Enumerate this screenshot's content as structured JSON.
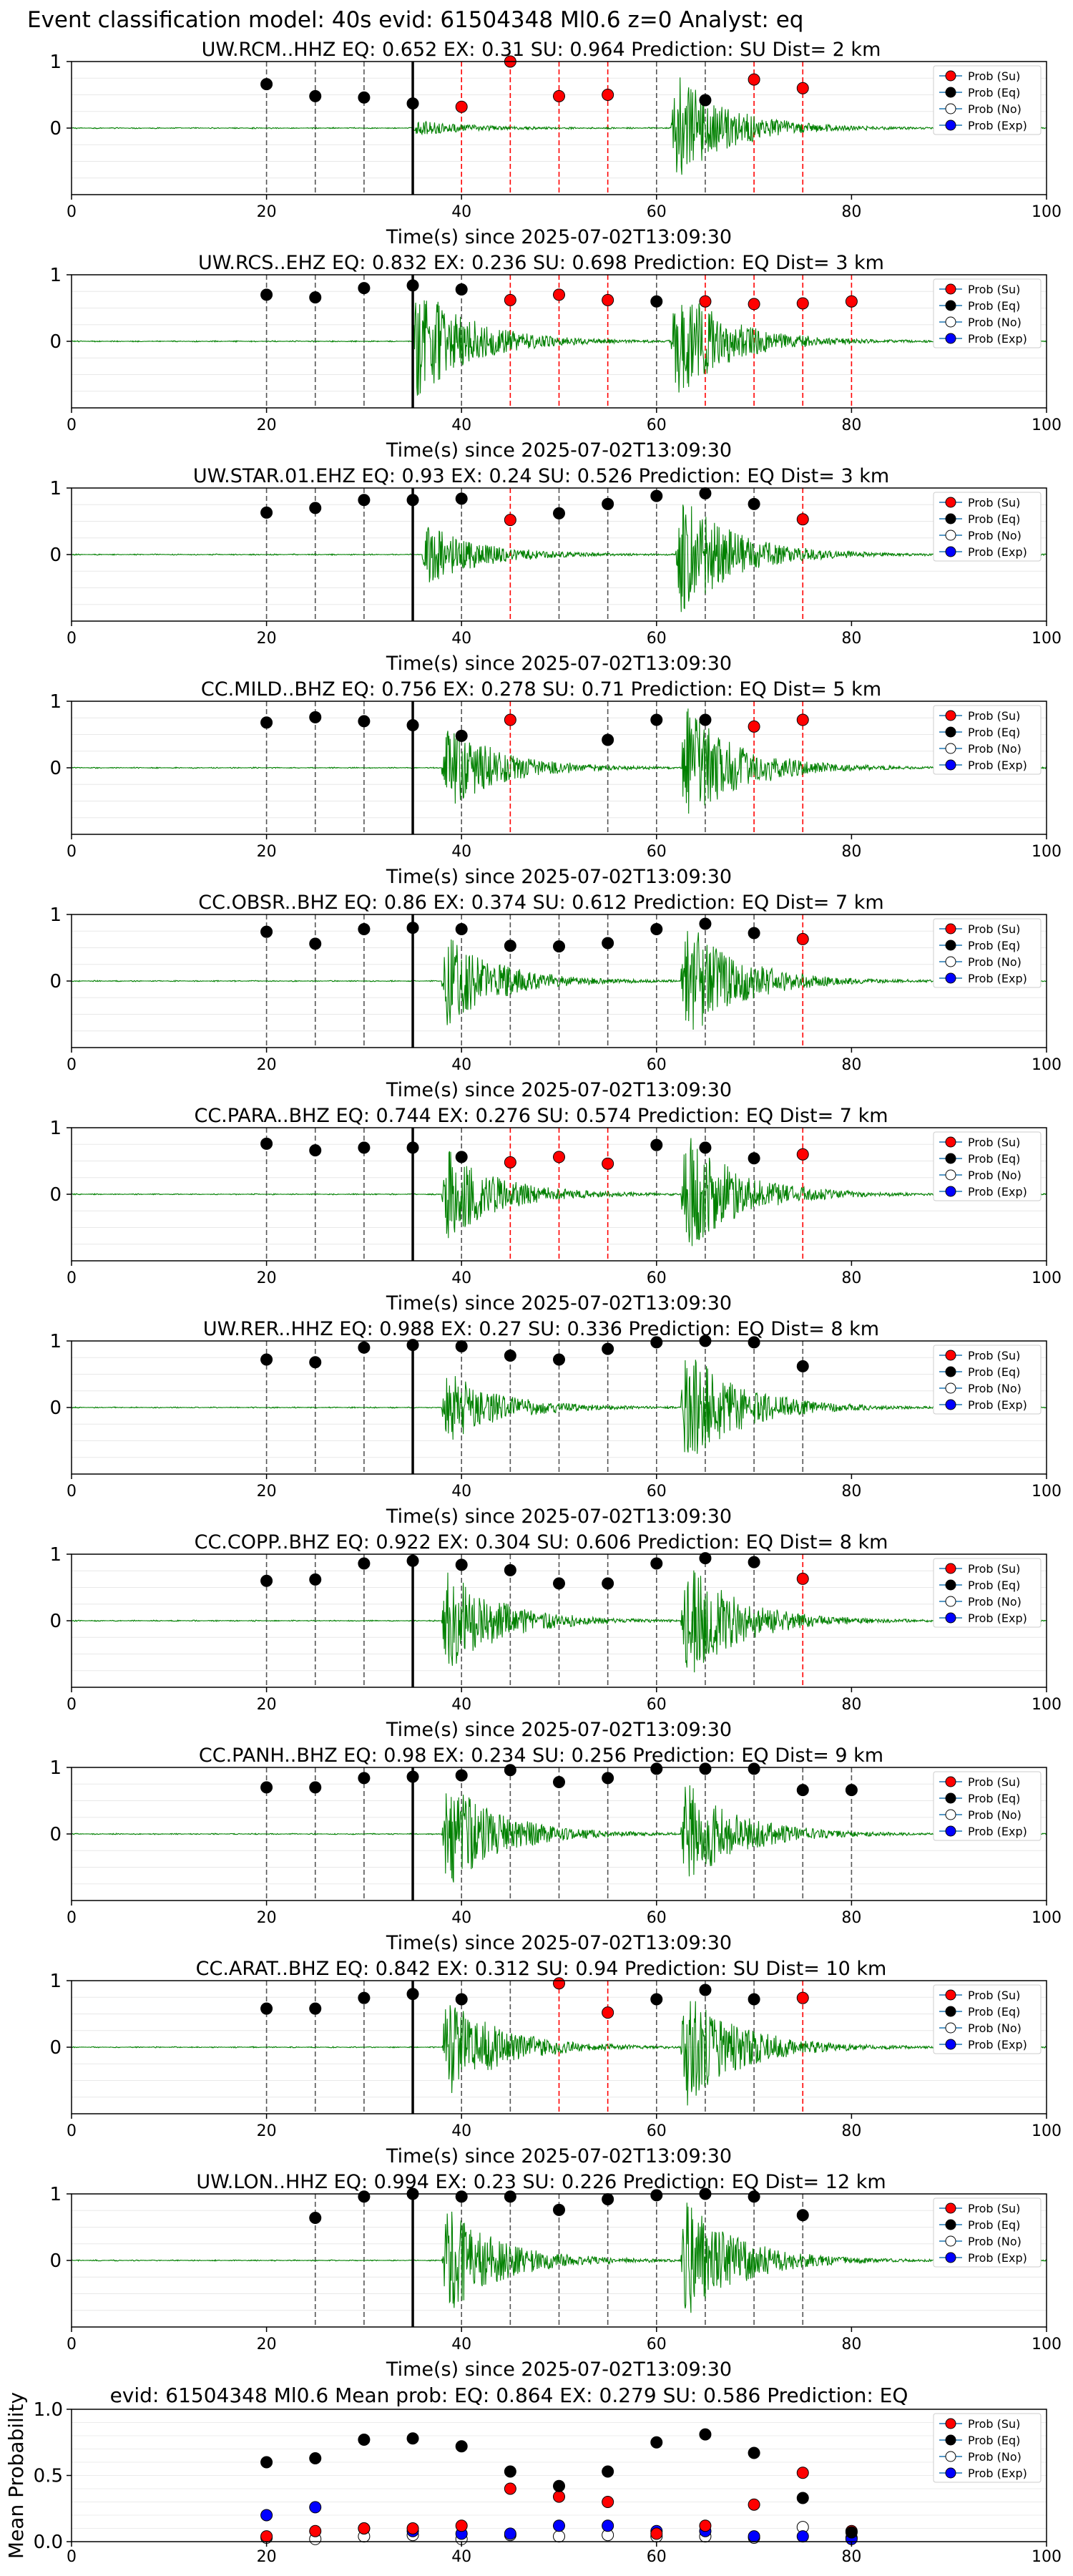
{
  "figure": {
    "title": "Event classification model: 40s evid: 61504348 Ml0.6 z=0 Analyst: eq",
    "xlabel": "Time(s) since 2025-07-02T13:09:30",
    "x_ticks": [
      "0",
      "20",
      "40",
      "60",
      "80",
      "100"
    ],
    "y_ticks": [
      "1",
      "0"
    ],
    "legend": [
      "Prob (Su)",
      "Prob (Eq)",
      "Prob (No)",
      "Prob (Exp)"
    ]
  },
  "colors": {
    "su": "#ff0000",
    "eq": "#000000",
    "no": "#ffffff",
    "exp": "#0000ff",
    "waveform": "#008000"
  },
  "chart_data": [
    {
      "type": "line",
      "station": "UW.RCM..HHZ",
      "title": "UW.RCM..HHZ   EQ: 0.652  EX: 0.31  SU: 0.964   Prediction: SU    Dist= 2 km",
      "xlim": [
        0,
        100
      ],
      "ylim": [
        -1,
        1
      ],
      "pick_time": 35,
      "bursts": [
        {
          "t": 35,
          "amp": 0.12
        },
        {
          "t": 61.5,
          "amp": 0.9
        }
      ],
      "windows": [
        20,
        25,
        30,
        35,
        40,
        45,
        50,
        55,
        60,
        65,
        70,
        75
      ],
      "eq_points": [
        [
          20,
          0.66
        ],
        [
          25,
          0.48
        ],
        [
          30,
          0.46
        ],
        [
          35,
          0.37
        ],
        [
          65,
          0.42
        ]
      ],
      "su_points": [
        [
          40,
          0.32
        ],
        [
          45,
          1.0
        ],
        [
          50,
          0.48
        ],
        [
          55,
          0.5
        ],
        [
          70,
          0.73
        ],
        [
          75,
          0.6
        ]
      ]
    },
    {
      "type": "line",
      "station": "UW.RCS..EHZ",
      "title": "UW.RCS..EHZ   EQ: 0.832  EX: 0.236  SU: 0.698   Prediction: EQ    Dist= 3 km",
      "xlim": [
        0,
        100
      ],
      "ylim": [
        -1,
        1
      ],
      "pick_time": 35,
      "bursts": [
        {
          "t": 35,
          "amp": 0.95
        },
        {
          "t": 61.5,
          "amp": 0.95
        }
      ],
      "windows": [
        20,
        25,
        30,
        35,
        40,
        45,
        50,
        55,
        60,
        65,
        70,
        75,
        80
      ],
      "eq_points": [
        [
          20,
          0.7
        ],
        [
          25,
          0.66
        ],
        [
          30,
          0.8
        ],
        [
          35,
          0.84
        ],
        [
          40,
          0.78
        ],
        [
          60,
          0.6
        ]
      ],
      "su_points": [
        [
          45,
          0.62
        ],
        [
          50,
          0.7
        ],
        [
          55,
          0.62
        ],
        [
          65,
          0.6
        ],
        [
          70,
          0.56
        ],
        [
          75,
          0.57
        ],
        [
          80,
          0.6
        ]
      ]
    },
    {
      "type": "line",
      "station": "UW.STAR.01.EHZ",
      "title": "UW.STAR.01.EHZ   EQ: 0.93  EX: 0.24  SU: 0.526   Prediction: EQ    Dist= 3 km",
      "xlim": [
        0,
        100
      ],
      "ylim": [
        -1,
        1
      ],
      "pick_time": 35,
      "bursts": [
        {
          "t": 36,
          "amp": 0.5
        },
        {
          "t": 62,
          "amp": 1.0
        }
      ],
      "windows": [
        20,
        25,
        30,
        35,
        40,
        45,
        50,
        55,
        60,
        65,
        70,
        75
      ],
      "eq_points": [
        [
          20,
          0.63
        ],
        [
          25,
          0.7
        ],
        [
          30,
          0.82
        ],
        [
          35,
          0.82
        ],
        [
          40,
          0.84
        ],
        [
          50,
          0.62
        ],
        [
          55,
          0.76
        ],
        [
          60,
          0.88
        ],
        [
          65,
          0.92
        ],
        [
          70,
          0.76
        ]
      ],
      "su_points": [
        [
          45,
          0.52
        ],
        [
          75,
          0.53
        ]
      ]
    },
    {
      "type": "line",
      "station": "CC.MILD..BHZ",
      "title": "CC.MILD..BHZ   EQ: 0.756  EX: 0.278  SU: 0.71   Prediction: EQ    Dist= 5 km",
      "xlim": [
        0,
        100
      ],
      "ylim": [
        -1,
        1
      ],
      "pick_time": 35,
      "bursts": [
        {
          "t": 38,
          "amp": 0.75
        },
        {
          "t": 62.5,
          "amp": 1.0
        }
      ],
      "windows": [
        20,
        25,
        30,
        35,
        40,
        45,
        55,
        60,
        65,
        70,
        75
      ],
      "eq_points": [
        [
          20,
          0.68
        ],
        [
          25,
          0.76
        ],
        [
          30,
          0.7
        ],
        [
          35,
          0.64
        ],
        [
          40,
          0.48
        ],
        [
          55,
          0.42
        ],
        [
          60,
          0.72
        ],
        [
          65,
          0.72
        ]
      ],
      "su_points": [
        [
          45,
          0.72
        ],
        [
          70,
          0.62
        ],
        [
          75,
          0.72
        ]
      ]
    },
    {
      "type": "line",
      "station": "CC.OBSR..BHZ",
      "title": "CC.OBSR..BHZ   EQ: 0.86  EX: 0.374  SU: 0.612   Prediction: EQ    Dist= 7 km",
      "xlim": [
        0,
        100
      ],
      "ylim": [
        -1,
        1
      ],
      "pick_time": 35,
      "bursts": [
        {
          "t": 38,
          "amp": 0.75
        },
        {
          "t": 62.5,
          "amp": 1.0
        }
      ],
      "windows": [
        20,
        25,
        30,
        35,
        40,
        45,
        50,
        55,
        60,
        65,
        70,
        75
      ],
      "eq_points": [
        [
          20,
          0.74
        ],
        [
          25,
          0.56
        ],
        [
          30,
          0.78
        ],
        [
          35,
          0.8
        ],
        [
          40,
          0.78
        ],
        [
          45,
          0.53
        ],
        [
          50,
          0.52
        ],
        [
          55,
          0.57
        ],
        [
          60,
          0.78
        ],
        [
          65,
          0.86
        ],
        [
          70,
          0.72
        ]
      ],
      "su_points": [
        [
          75,
          0.63
        ]
      ]
    },
    {
      "type": "line",
      "station": "CC.PARA..BHZ",
      "title": "CC.PARA..BHZ   EQ: 0.744  EX: 0.276  SU: 0.574   Prediction: EQ    Dist= 7 km",
      "xlim": [
        0,
        100
      ],
      "ylim": [
        -1,
        1
      ],
      "pick_time": 35,
      "bursts": [
        {
          "t": 38,
          "amp": 0.75
        },
        {
          "t": 62.5,
          "amp": 1.0
        }
      ],
      "windows": [
        20,
        25,
        30,
        35,
        40,
        45,
        50,
        55,
        60,
        65,
        70,
        75
      ],
      "eq_points": [
        [
          20,
          0.76
        ],
        [
          25,
          0.66
        ],
        [
          30,
          0.7
        ],
        [
          35,
          0.7
        ],
        [
          40,
          0.56
        ],
        [
          60,
          0.74
        ],
        [
          65,
          0.7
        ],
        [
          70,
          0.54
        ]
      ],
      "su_points": [
        [
          45,
          0.48
        ],
        [
          50,
          0.56
        ],
        [
          55,
          0.46
        ],
        [
          75,
          0.6
        ]
      ]
    },
    {
      "type": "line",
      "station": "UW.RER..HHZ",
      "title": "UW.RER..HHZ   EQ: 0.988  EX: 0.27  SU: 0.336   Prediction: EQ    Dist= 8 km",
      "xlim": [
        0,
        100
      ],
      "ylim": [
        -1,
        1
      ],
      "pick_time": 35,
      "bursts": [
        {
          "t": 38,
          "amp": 0.6
        },
        {
          "t": 62.5,
          "amp": 1.0
        }
      ],
      "windows": [
        20,
        25,
        30,
        35,
        40,
        45,
        50,
        55,
        60,
        65,
        70,
        75
      ],
      "eq_points": [
        [
          20,
          0.72
        ],
        [
          25,
          0.68
        ],
        [
          30,
          0.9
        ],
        [
          35,
          0.94
        ],
        [
          40,
          0.92
        ],
        [
          45,
          0.78
        ],
        [
          50,
          0.72
        ],
        [
          55,
          0.88
        ],
        [
          60,
          0.98
        ],
        [
          65,
          1.0
        ],
        [
          70,
          0.98
        ],
        [
          75,
          0.62
        ]
      ],
      "su_points": []
    },
    {
      "type": "line",
      "station": "CC.COPP..BHZ",
      "title": "CC.COPP..BHZ   EQ: 0.922  EX: 0.304  SU: 0.606   Prediction: EQ    Dist= 8 km",
      "xlim": [
        0,
        100
      ],
      "ylim": [
        -1,
        1
      ],
      "pick_time": 35,
      "bursts": [
        {
          "t": 38,
          "amp": 0.85
        },
        {
          "t": 62.5,
          "amp": 1.0
        }
      ],
      "windows": [
        20,
        25,
        30,
        35,
        40,
        45,
        50,
        55,
        60,
        65,
        70,
        75
      ],
      "eq_points": [
        [
          20,
          0.6
        ],
        [
          25,
          0.62
        ],
        [
          30,
          0.86
        ],
        [
          35,
          0.9
        ],
        [
          40,
          0.84
        ],
        [
          45,
          0.76
        ],
        [
          50,
          0.56
        ],
        [
          55,
          0.56
        ],
        [
          60,
          0.86
        ],
        [
          65,
          0.94
        ],
        [
          70,
          0.88
        ]
      ],
      "su_points": [
        [
          75,
          0.63
        ]
      ]
    },
    {
      "type": "line",
      "station": "CC.PANH..BHZ",
      "title": "CC.PANH..BHZ   EQ: 0.98  EX: 0.234  SU: 0.256   Prediction: EQ    Dist= 9 km",
      "xlim": [
        0,
        100
      ],
      "ylim": [
        -1,
        1
      ],
      "pick_time": 35,
      "bursts": [
        {
          "t": 38,
          "amp": 0.9
        },
        {
          "t": 62.5,
          "amp": 0.85
        }
      ],
      "windows": [
        20,
        25,
        30,
        35,
        40,
        45,
        50,
        55,
        60,
        65,
        70,
        75,
        80
      ],
      "eq_points": [
        [
          20,
          0.7
        ],
        [
          25,
          0.7
        ],
        [
          30,
          0.84
        ],
        [
          35,
          0.86
        ],
        [
          40,
          0.88
        ],
        [
          45,
          0.96
        ],
        [
          50,
          0.78
        ],
        [
          55,
          0.84
        ],
        [
          60,
          0.98
        ],
        [
          65,
          0.98
        ],
        [
          70,
          0.98
        ],
        [
          75,
          0.66
        ],
        [
          80,
          0.66
        ]
      ],
      "su_points": []
    },
    {
      "type": "line",
      "station": "CC.ARAT..BHZ",
      "title": "CC.ARAT..BHZ   EQ: 0.842  EX: 0.312  SU: 0.94   Prediction: SU    Dist= 10 km",
      "xlim": [
        0,
        100
      ],
      "ylim": [
        -1,
        1
      ],
      "pick_time": 35,
      "bursts": [
        {
          "t": 38,
          "amp": 0.85
        },
        {
          "t": 62.5,
          "amp": 1.0
        }
      ],
      "windows": [
        20,
        25,
        30,
        35,
        40,
        45,
        50,
        55,
        60,
        65,
        70,
        75
      ],
      "eq_points": [
        [
          20,
          0.58
        ],
        [
          25,
          0.58
        ],
        [
          30,
          0.74
        ],
        [
          35,
          0.8
        ],
        [
          40,
          0.72
        ],
        [
          60,
          0.72
        ],
        [
          65,
          0.86
        ],
        [
          70,
          0.72
        ]
      ],
      "su_points": [
        [
          50,
          0.96
        ],
        [
          55,
          0.52
        ],
        [
          75,
          0.74
        ]
      ]
    },
    {
      "type": "line",
      "station": "UW.LON..HHZ",
      "title": "UW.LON..HHZ   EQ: 0.994  EX: 0.23  SU: 0.226   Prediction: EQ    Dist= 12 km",
      "xlim": [
        0,
        100
      ],
      "ylim": [
        -1,
        1
      ],
      "pick_time": 35,
      "bursts": [
        {
          "t": 38,
          "amp": 0.9
        },
        {
          "t": 62.5,
          "amp": 1.0
        }
      ],
      "windows": [
        25,
        30,
        35,
        40,
        45,
        50,
        55,
        60,
        65,
        70,
        75
      ],
      "eq_points": [
        [
          25,
          0.64
        ],
        [
          30,
          0.96
        ],
        [
          35,
          1.0
        ],
        [
          40,
          0.96
        ],
        [
          45,
          0.96
        ],
        [
          50,
          0.76
        ],
        [
          55,
          0.92
        ],
        [
          60,
          0.98
        ],
        [
          65,
          1.0
        ],
        [
          70,
          0.96
        ],
        [
          75,
          0.68
        ]
      ],
      "su_points": []
    },
    {
      "type": "scatter",
      "station": "mean",
      "title": "evid: 61504348  Ml0.6   Mean prob:   EQ: 0.864  EX: 0.279  SU: 0.586   Prediction: EQ",
      "ylabel": "Mean Probability",
      "xlim": [
        0,
        100
      ],
      "ylim": [
        0,
        1
      ],
      "y_ticks": [
        "1.0",
        "0.5",
        "0.0"
      ],
      "x": [
        20,
        25,
        30,
        35,
        40,
        45,
        50,
        55,
        60,
        65,
        70,
        75,
        80
      ],
      "series": [
        {
          "name": "Prob (Su)",
          "values": [
            0.04,
            0.08,
            0.1,
            0.1,
            0.12,
            0.4,
            0.34,
            0.3,
            0.06,
            0.12,
            0.28,
            0.52,
            0.08
          ]
        },
        {
          "name": "Prob (Eq)",
          "values": [
            0.6,
            0.63,
            0.77,
            0.78,
            0.72,
            0.53,
            0.42,
            0.53,
            0.75,
            0.81,
            0.67,
            0.33,
            0.07
          ]
        },
        {
          "name": "Prob (No)",
          "values": [
            0.03,
            0.02,
            0.04,
            0.05,
            0.02,
            0.05,
            0.04,
            0.05,
            0.04,
            0.04,
            0.03,
            0.11,
            0.03
          ]
        },
        {
          "name": "Prob (Exp)",
          "values": [
            0.2,
            0.26,
            0.1,
            0.08,
            0.06,
            0.06,
            0.12,
            0.12,
            0.08,
            0.08,
            0.04,
            0.04,
            0.02
          ]
        }
      ]
    }
  ]
}
